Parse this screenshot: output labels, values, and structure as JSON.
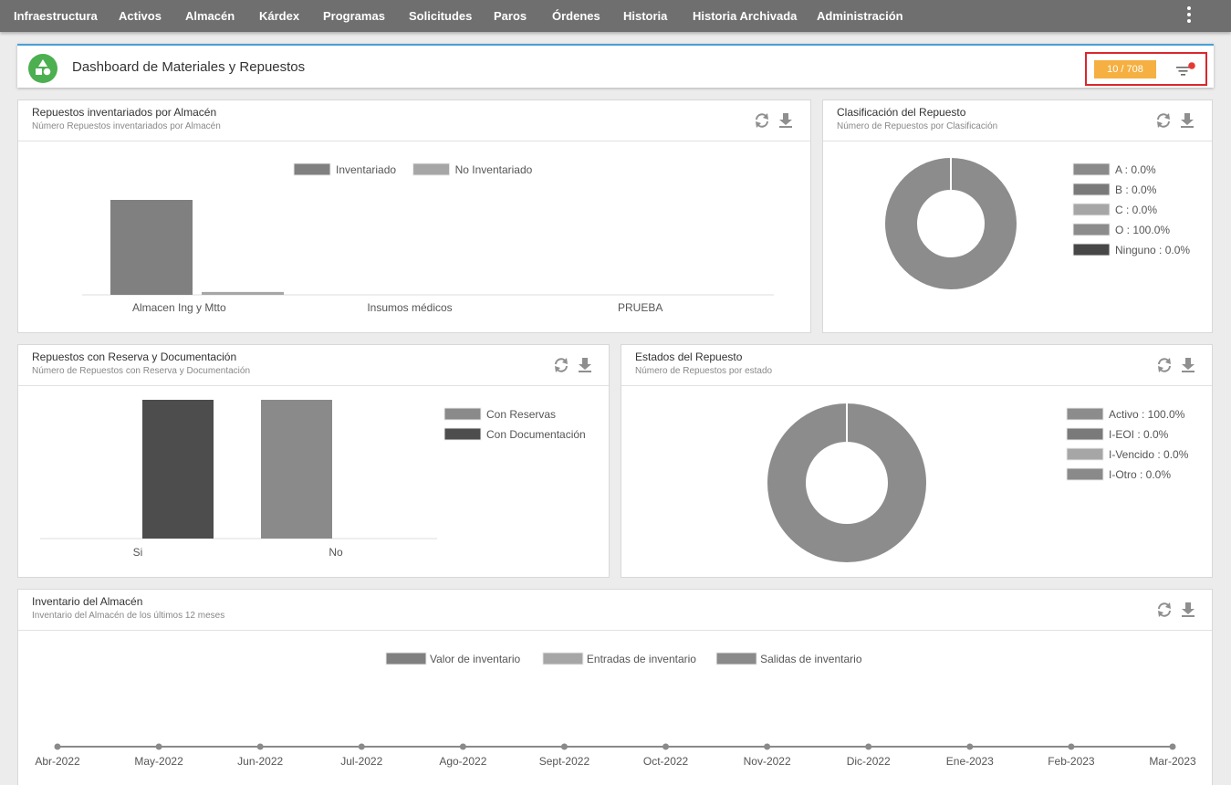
{
  "nav": {
    "items": [
      "Infraestructura",
      "Activos",
      "Almacén",
      "Kárdex",
      "Programas",
      "Solicitudes",
      "Paros",
      "Órdenes",
      "Historia",
      "Historia Archivada",
      "Administración"
    ]
  },
  "header": {
    "title": "Dashboard de Materiales y Repuestos",
    "count_badge": "10 / 708"
  },
  "colors": {
    "accent": "#4a9fd8",
    "logo": "#4caf50",
    "badge": "#f5b041",
    "highlight_border": "#d9272e",
    "notification_dot": "#e53935"
  },
  "cards": {
    "inventariados": {
      "title": "Repuestos inventariados por Almacén",
      "subtitle": "Número Repuestos inventariados por Almacén"
    },
    "clasificacion": {
      "title": "Clasificación del Repuesto",
      "subtitle": "Número de Repuestos por Clasificación"
    },
    "reserva": {
      "title": "Repuestos con Reserva y Documentación",
      "subtitle": "Número de Repuestos con Reserva y Documentación"
    },
    "estados": {
      "title": "Estados del Repuesto",
      "subtitle": "Número de Repuestos por estado"
    },
    "inventario": {
      "title": "Inventario del Almacén",
      "subtitle": "Inventario del Almacén de los últimos 12 meses"
    }
  },
  "chart_data": [
    {
      "id": "inventariados",
      "type": "bar",
      "categories": [
        "Almacen Ing y Mtto",
        "Insumos médicos",
        "PRUEBA"
      ],
      "series": [
        {
          "name": "Inventariado",
          "color": "#808080",
          "values": [
            100,
            0,
            0
          ]
        },
        {
          "name": "No Inventariado",
          "color": "#a6a6a6",
          "values": [
            3,
            0,
            0
          ]
        }
      ],
      "legend": "top-center",
      "ylim": [
        0,
        100
      ]
    },
    {
      "id": "clasificacion",
      "type": "pie",
      "labels": [
        "A : 0.0%",
        "B : 0.0%",
        "C : 0.0%",
        "O : 100.0%",
        "Ninguno : 0.0%"
      ],
      "values": [
        0.0,
        0.0,
        0.0,
        100.0,
        0.0
      ],
      "colors": [
        "#8a8a8a",
        "#7a7a7a",
        "#a6a6a6",
        "#8c8c8c",
        "#474747"
      ],
      "legend": "right"
    },
    {
      "id": "reserva",
      "type": "bar",
      "categories": [
        "Si",
        "No"
      ],
      "series": [
        {
          "name": "Con Reservas",
          "color": "#8a8a8a",
          "values": [
            0,
            100
          ]
        },
        {
          "name": "Con Documentación",
          "color": "#4d4d4d",
          "values": [
            100,
            0
          ]
        }
      ],
      "legend": "right",
      "ylim": [
        0,
        100
      ]
    },
    {
      "id": "estados",
      "type": "pie",
      "labels": [
        "Activo : 100.0%",
        "I-EOI : 0.0%",
        "I-Vencido : 0.0%",
        "I-Otro : 0.0%"
      ],
      "values": [
        100.0,
        0.0,
        0.0,
        0.0
      ],
      "colors": [
        "#8c8c8c",
        "#7a7a7a",
        "#a6a6a6",
        "#8a8a8a"
      ],
      "legend": "right"
    },
    {
      "id": "inventario",
      "type": "line",
      "x": [
        "Abr-2022",
        "May-2022",
        "Jun-2022",
        "Jul-2022",
        "Ago-2022",
        "Sept-2022",
        "Oct-2022",
        "Nov-2022",
        "Dic-2022",
        "Ene-2023",
        "Feb-2023",
        "Mar-2023"
      ],
      "series": [
        {
          "name": "Valor de inventario",
          "color": "#808080",
          "values": [
            0,
            0,
            0,
            0,
            0,
            0,
            0,
            0,
            0,
            0,
            0,
            0
          ]
        },
        {
          "name": "Entradas de inventario",
          "color": "#a6a6a6",
          "values": [
            0,
            0,
            0,
            0,
            0,
            0,
            0,
            0,
            0,
            0,
            0,
            0
          ]
        },
        {
          "name": "Salidas de inventario",
          "color": "#8a8a8a",
          "values": [
            0,
            0,
            0,
            0,
            0,
            0,
            0,
            0,
            0,
            0,
            0,
            0
          ]
        }
      ],
      "legend": "top-center"
    }
  ]
}
